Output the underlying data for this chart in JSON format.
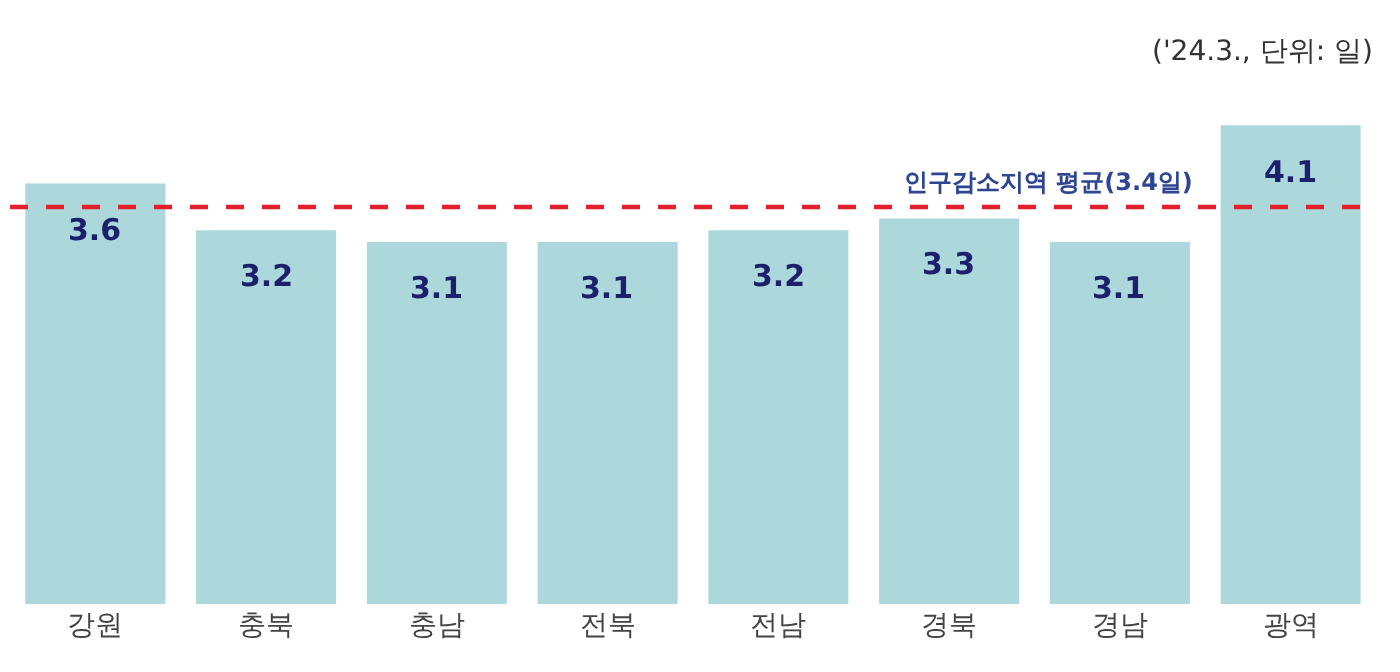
{
  "chart_data": {
    "type": "bar",
    "categories": [
      "강원",
      "충북",
      "충남",
      "전북",
      "전남",
      "경북",
      "경남",
      "광역"
    ],
    "values": [
      3.6,
      3.2,
      3.1,
      3.1,
      3.2,
      3.3,
      3.1,
      4.1
    ],
    "color": "#acd8db",
    "data_labels": true,
    "tick_labels": "x",
    "ref_lines": [
      {
        "axis": "y",
        "value": 3.4,
        "label": "인구감소지역 평균(3.4일)",
        "color": "#e3202a",
        "line_style": "dashed"
      }
    ],
    "annotations": [
      "('24.3., 단위: 일)"
    ]
  }
}
